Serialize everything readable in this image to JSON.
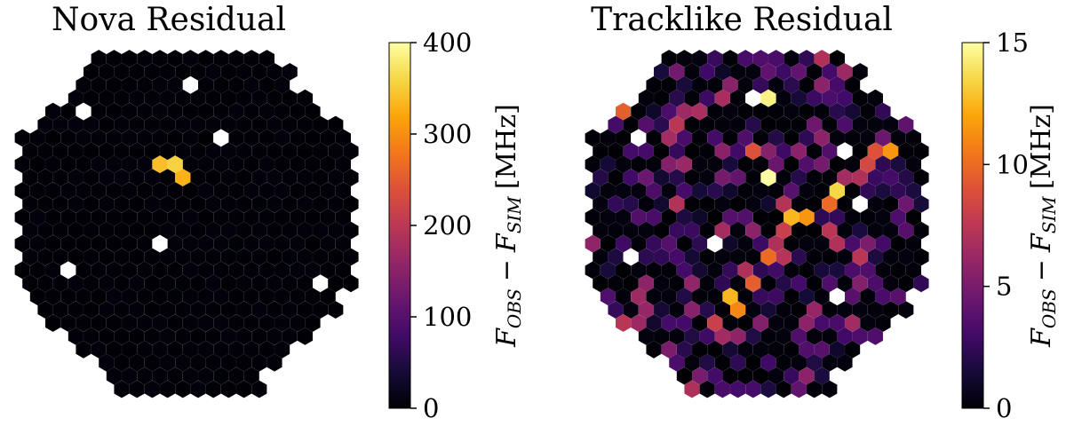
{
  "chart_data": [
    {
      "type": "heatmap",
      "title": "Nova Residual",
      "colorbar_label": "F_OBS − F_SIM [MHz]",
      "colorbar_label_parts": {
        "f": "F",
        "obs": "OBS",
        "minus": "−",
        "sim": "SIM",
        "unit": "[MHz]"
      },
      "colormap": "inferno",
      "clim": [
        0,
        400
      ],
      "colorbar_ticks": [
        "0",
        "100",
        "200",
        "300",
        "400"
      ],
      "background_value": 0,
      "bright_pixels": [
        {
          "row": 8,
          "col": 10,
          "value": 340
        },
        {
          "row": 8,
          "col": 11,
          "value": 355
        },
        {
          "row": 9,
          "col": 11,
          "value": 330
        }
      ],
      "dead_pixels": [
        {
          "row": 2,
          "col": 12
        },
        {
          "row": 4,
          "col": 5
        },
        {
          "row": 6,
          "col": 14
        },
        {
          "row": 14,
          "col": 10
        },
        {
          "row": 16,
          "col": 4
        },
        {
          "row": 17,
          "col": 20
        }
      ]
    },
    {
      "type": "heatmap",
      "title": "Tracklike Residual",
      "colorbar_label": "F_OBS − F_SIM [MHz]",
      "colorbar_label_parts": {
        "f": "F",
        "obs": "OBS",
        "minus": "−",
        "sim": "SIM",
        "unit": "[MHz]"
      },
      "colormap": "inferno",
      "clim": [
        0,
        15
      ],
      "colorbar_ticks": [
        "0",
        "5",
        "10",
        "15"
      ],
      "background_value": 0,
      "track_pixels": [
        {
          "row": 7,
          "col": 20,
          "value": 11.5
        },
        {
          "row": 7,
          "col": 19,
          "value": 9
        },
        {
          "row": 8,
          "col": 19,
          "value": 8.5
        },
        {
          "row": 9,
          "col": 18,
          "value": 7
        },
        {
          "row": 10,
          "col": 17,
          "value": 13.5
        },
        {
          "row": 11,
          "col": 16,
          "value": 10
        },
        {
          "row": 12,
          "col": 15,
          "value": 11.5
        },
        {
          "row": 12,
          "col": 14,
          "value": 12.5
        },
        {
          "row": 13,
          "col": 13,
          "value": 8
        },
        {
          "row": 14,
          "col": 13,
          "value": 7
        },
        {
          "row": 15,
          "col": 12,
          "value": 10
        },
        {
          "row": 16,
          "col": 11,
          "value": 7
        },
        {
          "row": 17,
          "col": 11,
          "value": 9.5
        },
        {
          "row": 18,
          "col": 10,
          "value": 12.5
        },
        {
          "row": 19,
          "col": 10,
          "value": 11
        },
        {
          "row": 20,
          "col": 9,
          "value": 8
        },
        {
          "row": 21,
          "col": 9,
          "value": 6.5
        },
        {
          "row": 3,
          "col": 12,
          "value": 14.5
        },
        {
          "row": 4,
          "col": 3,
          "value": 9.5
        },
        {
          "row": 9,
          "col": 12,
          "value": 15
        },
        {
          "row": 7,
          "col": 11,
          "value": 9
        },
        {
          "row": 24,
          "col": 5,
          "value": 13.5
        },
        {
          "row": 24,
          "col": 4,
          "value": 14.5
        },
        {
          "row": 23,
          "col": 5,
          "value": 6
        }
      ],
      "dead_pixels": [
        {
          "row": 3,
          "col": 11
        },
        {
          "row": 6,
          "col": 4
        },
        {
          "row": 7,
          "col": 17
        },
        {
          "row": 11,
          "col": 18
        },
        {
          "row": 14,
          "col": 9
        },
        {
          "row": 15,
          "col": 3
        },
        {
          "row": 18,
          "col": 17
        }
      ]
    }
  ]
}
